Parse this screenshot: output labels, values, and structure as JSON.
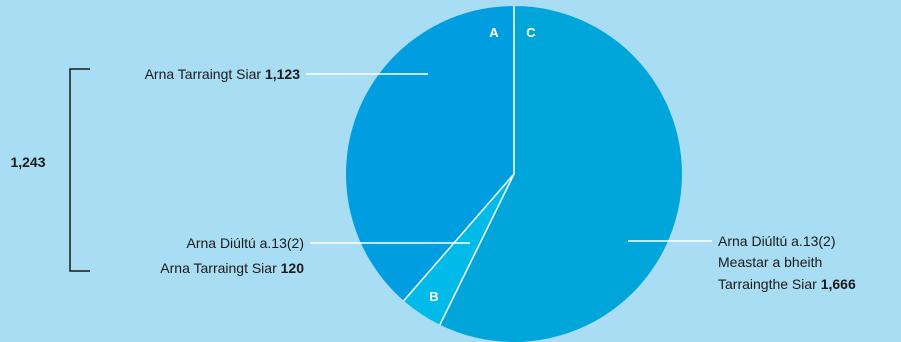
{
  "chart_data": {
    "type": "pie",
    "slices": [
      {
        "letter": "C",
        "label": "Arna Diúltú a.13(2) Meastar a bheith Tarraingthe Siar",
        "value": 1666,
        "value_text": "1,666",
        "color": "#00a6da"
      },
      {
        "letter": "B",
        "label": "Arna Diúltú a.13(2) Arna Tarraingt Siar",
        "value": 120,
        "value_text": "120",
        "color": "#00bbea"
      },
      {
        "letter": "A",
        "label": "Arna Tarraingt Siar",
        "value": 1123,
        "value_text": "1,123",
        "color": "#009ee0"
      }
    ],
    "bracket": {
      "value_text": "1,243",
      "groups": [
        "A",
        "B"
      ]
    },
    "annotations": {
      "a": {
        "text": "Arna Tarraingt Siar",
        "value": "1,123"
      },
      "b": {
        "line1": "Arna Diúltú a.13(2)",
        "line2_text": "Arna Tarraingt Siar",
        "value": "120"
      },
      "c": {
        "line1": "Arna Diúltú a.13(2)",
        "line2": "Meastar a bheith",
        "line3_text": "Tarraingthe Siar",
        "value": "1,666"
      }
    },
    "colors": {
      "background": "#a9ddf3",
      "separator": "#ffffff",
      "text": "#1a1a1a",
      "bracket": "#1a1a1a"
    }
  }
}
